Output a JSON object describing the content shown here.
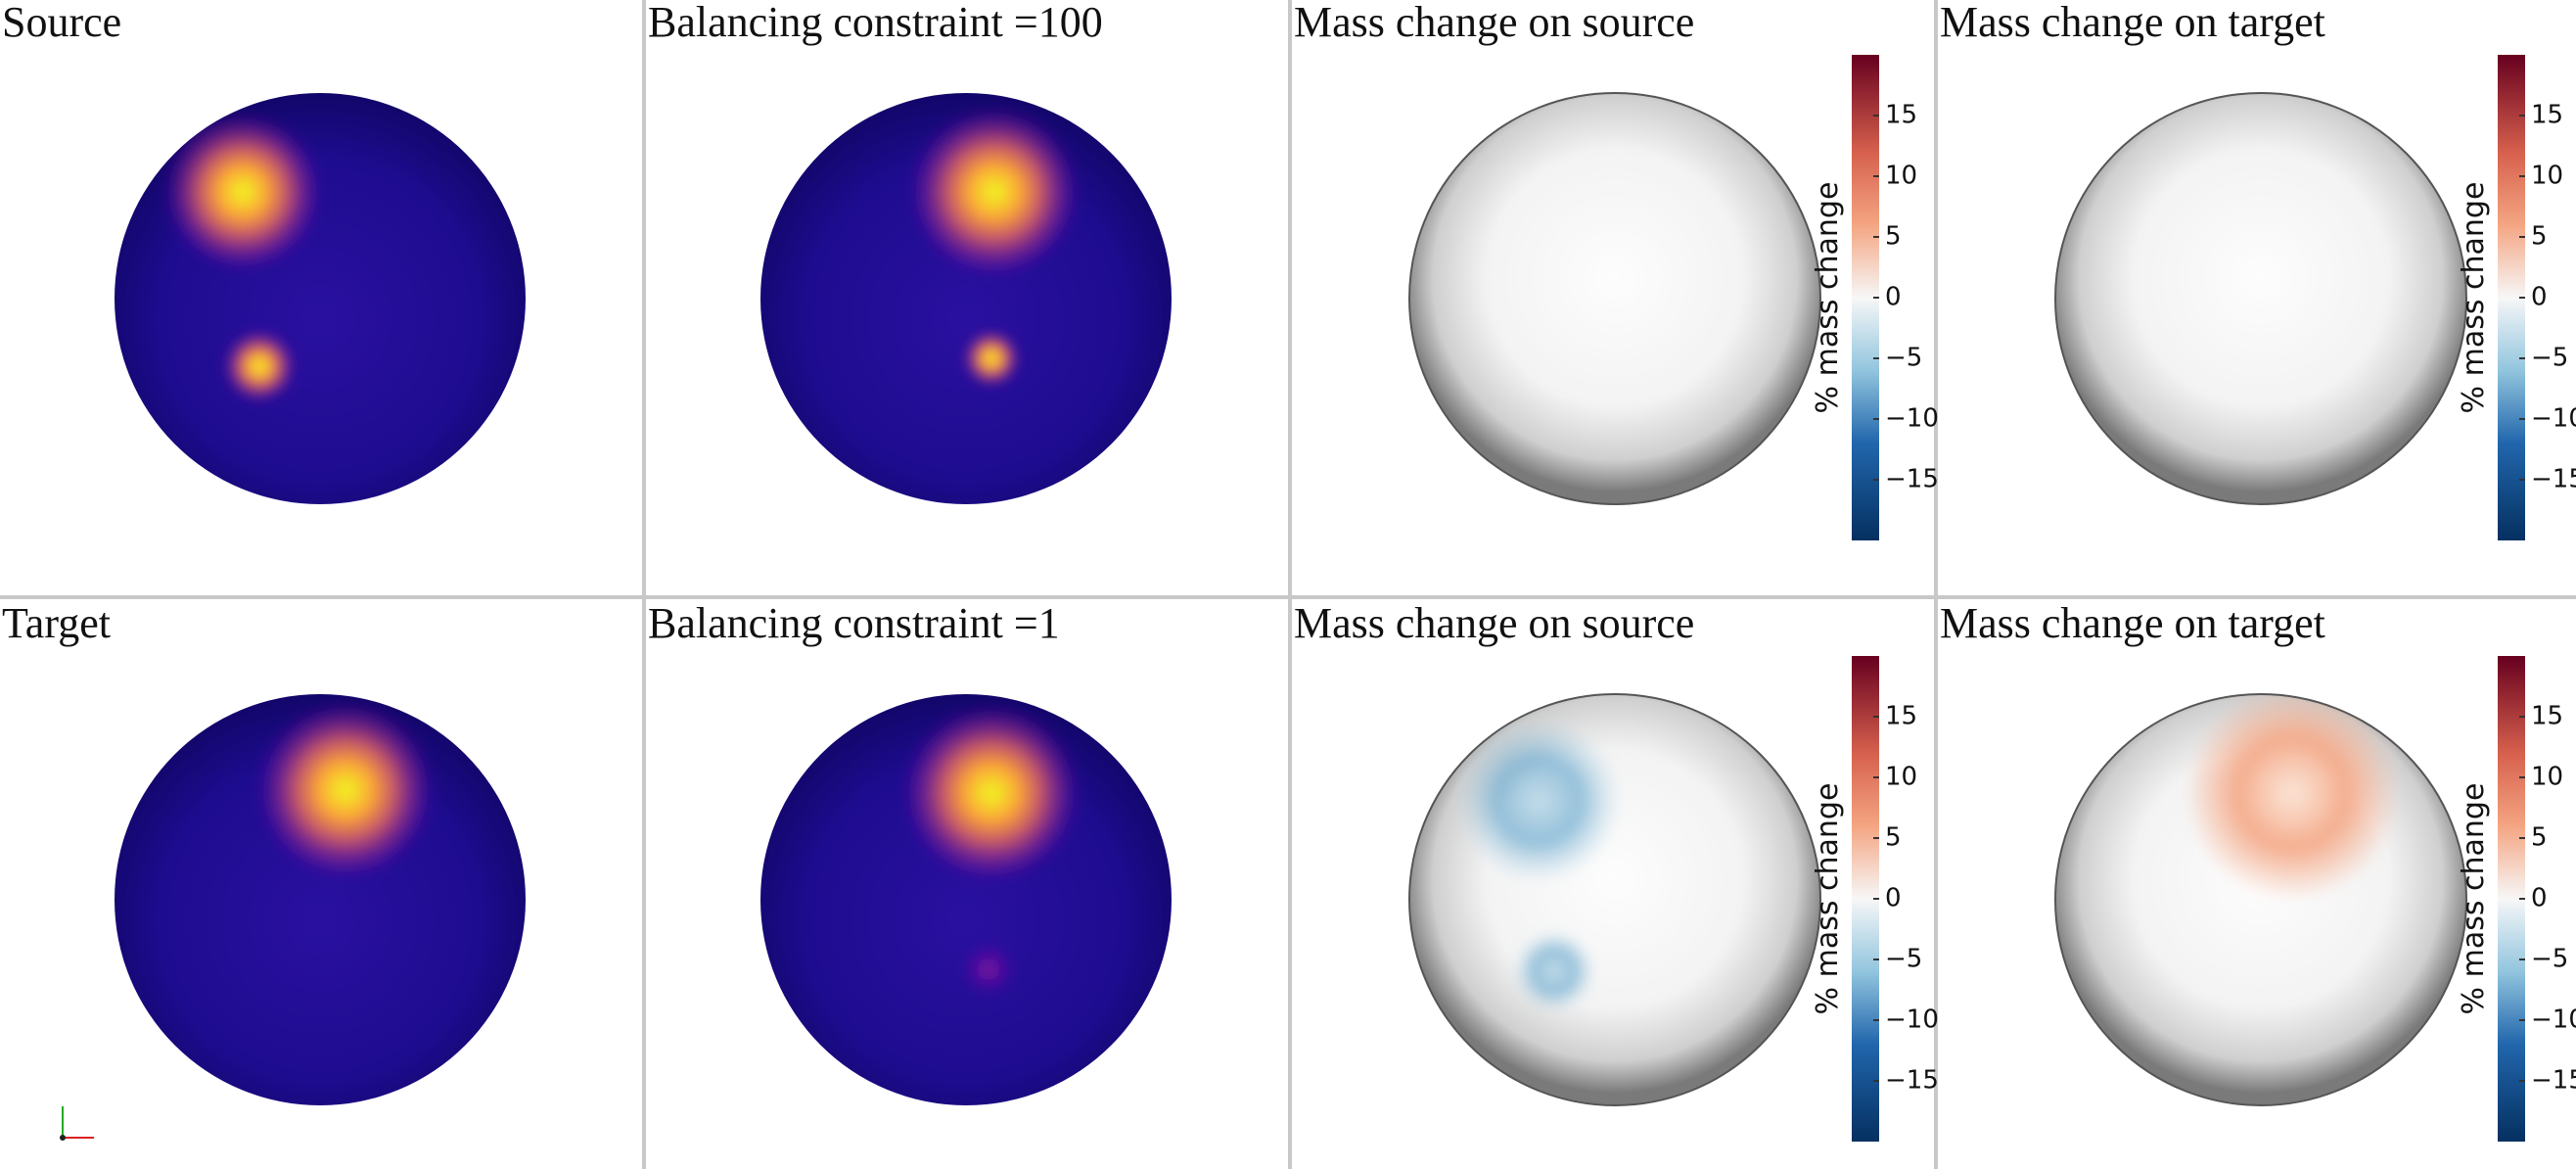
{
  "panels": [
    {
      "title": "Source"
    },
    {
      "title": "Balancing constraint =100"
    },
    {
      "title": "Mass change on source"
    },
    {
      "title": "Mass change on target"
    },
    {
      "title": "Target"
    },
    {
      "title": "Balancing constraint =1"
    },
    {
      "title": "Mass change on source"
    },
    {
      "title": "Mass change on target"
    }
  ],
  "colorbar": {
    "label": "% mass change",
    "range": [
      -20,
      20
    ],
    "ticks": [
      15,
      10,
      5,
      0,
      {
        "value": -5,
        "label": "−5"
      },
      {
        "value": -10,
        "label": "−10"
      },
      {
        "value": -15,
        "label": "−15"
      }
    ]
  }
}
